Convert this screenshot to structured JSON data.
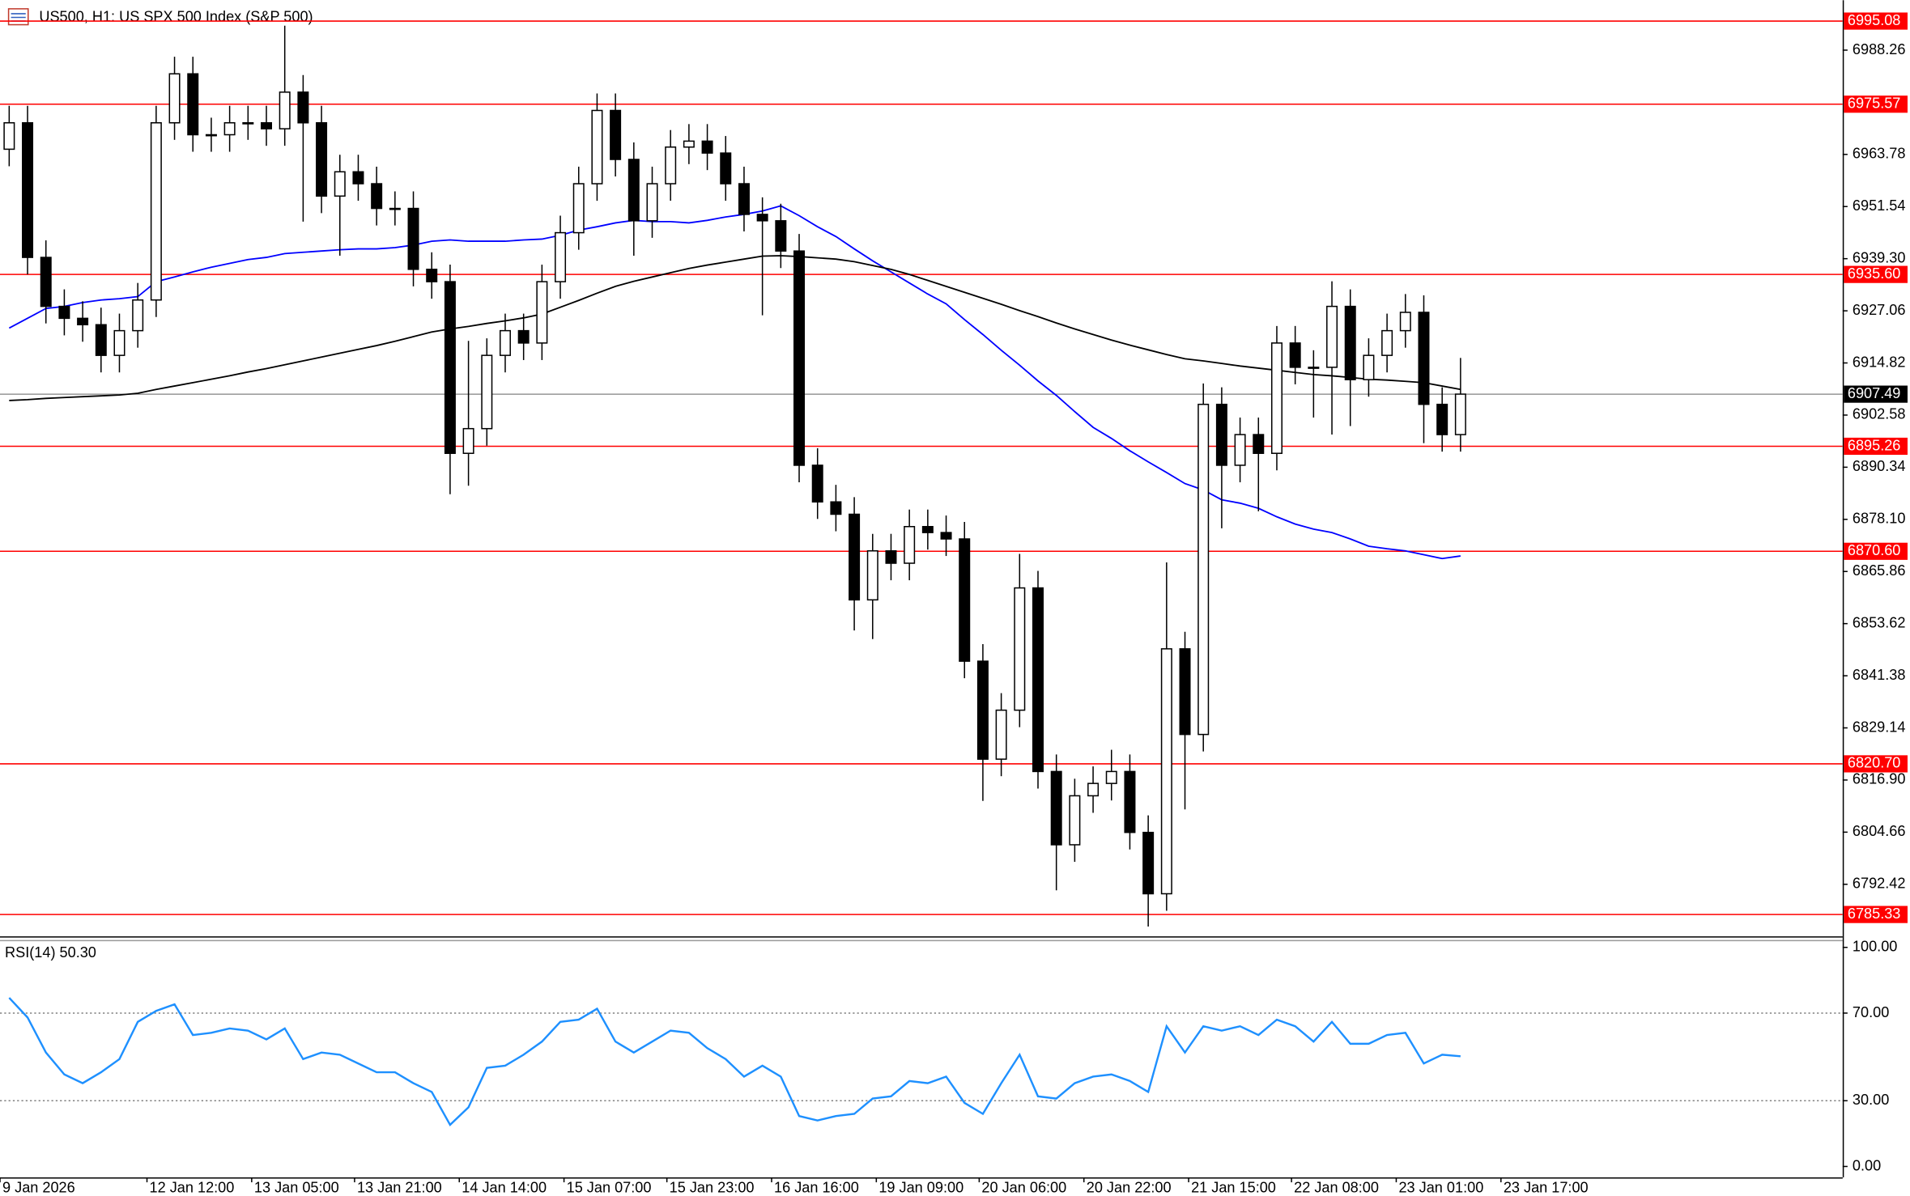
{
  "chart_data": [
    {
      "type": "candlestick",
      "title": "US500, H1:  US SPX 500 Index (S&P 500)",
      "open": [
        6965.0,
        6971.2,
        6939.6,
        6928.1,
        6925.3,
        6923.8,
        6916.6,
        6922.4,
        6929.6,
        6971.2,
        6982.7,
        6968.4,
        6968.4,
        6971.2,
        6971.2,
        6969.8,
        6978.4,
        6971.2,
        6954.0,
        6959.7,
        6956.9,
        6951.1,
        6951.1,
        6936.8,
        6933.9,
        6893.6,
        6899.4,
        6916.6,
        6922.4,
        6919.5,
        6933.9,
        6945.4,
        6956.9,
        6974.1,
        6962.6,
        6948.2,
        6956.9,
        6965.5,
        6966.9,
        6964.1,
        6956.9,
        6949.7,
        6948.2,
        6941.1,
        6890.8,
        6882.2,
        6879.3,
        6859.2,
        6870.7,
        6867.8,
        6876.4,
        6875.0,
        6873.5,
        6844.8,
        6821.8,
        6833.3,
        6862.0,
        6818.9,
        6801.7,
        6813.2,
        6816.1,
        6818.9,
        6804.6,
        6790.2,
        6847.7,
        6827.6,
        6905.1,
        6890.8,
        6898.0,
        6893.6,
        6919.5,
        6913.8,
        6913.8,
        6928.1,
        6910.9,
        6916.6,
        6922.4,
        6926.7,
        6905.1,
        6898.0
      ],
      "high": [
        6975.2,
        6975.2,
        6943.6,
        6932.1,
        6929.3,
        6927.8,
        6926.4,
        6933.6,
        6975.2,
        6986.7,
        6986.7,
        6972.4,
        6975.2,
        6975.2,
        6975.2,
        6994.0,
        6982.4,
        6975.2,
        6963.7,
        6963.7,
        6960.9,
        6955.1,
        6955.1,
        6940.8,
        6937.9,
        6920.0,
        6920.6,
        6926.4,
        6926.4,
        6937.9,
        6949.4,
        6960.9,
        6978.1,
        6978.1,
        6966.6,
        6960.9,
        6969.5,
        6970.9,
        6970.9,
        6968.1,
        6960.9,
        6953.7,
        6952.2,
        6945.1,
        6894.8,
        6886.2,
        6883.3,
        6874.7,
        6874.7,
        6880.4,
        6880.4,
        6879.0,
        6877.5,
        6848.8,
        6837.3,
        6870.0,
        6866.0,
        6822.9,
        6817.2,
        6820.1,
        6824.0,
        6822.9,
        6808.6,
        6868.0,
        6851.7,
        6910.0,
        6909.1,
        6902.0,
        6902.0,
        6923.5,
        6923.5,
        6917.8,
        6934.0,
        6932.1,
        6920.6,
        6926.4,
        6931.0,
        6930.7,
        6909.1,
        6916.0
      ],
      "low": [
        6961.0,
        6935.6,
        6924.1,
        6921.3,
        6919.8,
        6912.6,
        6912.6,
        6918.4,
        6925.6,
        6967.2,
        6964.4,
        6964.4,
        6964.4,
        6967.2,
        6965.8,
        6965.8,
        6948.0,
        6950.0,
        6940.0,
        6952.9,
        6947.1,
        6947.1,
        6932.8,
        6929.9,
        6884.0,
        6886.0,
        6895.4,
        6912.6,
        6915.5,
        6915.5,
        6929.9,
        6941.4,
        6952.9,
        6958.6,
        6940.0,
        6944.2,
        6952.9,
        6961.5,
        6960.1,
        6952.9,
        6945.7,
        6926.0,
        6937.1,
        6886.8,
        6878.2,
        6875.3,
        6852.0,
        6850.0,
        6863.8,
        6863.8,
        6871.0,
        6869.5,
        6840.8,
        6812.0,
        6817.8,
        6829.3,
        6814.9,
        6791.0,
        6797.7,
        6809.2,
        6812.1,
        6800.6,
        6782.5,
        6786.2,
        6810.0,
        6823.6,
        6876.0,
        6886.8,
        6880.0,
        6889.6,
        6909.8,
        6902.0,
        6898.0,
        6900.0,
        6906.9,
        6912.6,
        6918.4,
        6896.0,
        6894.0,
        6894.0
      ],
      "close": [
        6971.2,
        6939.6,
        6928.1,
        6925.3,
        6923.8,
        6916.6,
        6922.4,
        6929.6,
        6971.2,
        6982.7,
        6968.4,
        6968.4,
        6971.2,
        6971.2,
        6969.8,
        6978.4,
        6971.2,
        6954.0,
        6959.7,
        6956.9,
        6951.1,
        6951.1,
        6936.8,
        6933.9,
        6893.6,
        6899.4,
        6916.6,
        6922.4,
        6919.5,
        6933.9,
        6945.4,
        6956.9,
        6974.1,
        6962.6,
        6948.2,
        6956.9,
        6965.5,
        6966.9,
        6964.1,
        6956.9,
        6949.7,
        6948.2,
        6941.1,
        6890.8,
        6882.2,
        6879.3,
        6859.2,
        6870.7,
        6867.8,
        6876.4,
        6875.0,
        6873.5,
        6844.8,
        6821.8,
        6833.3,
        6862.0,
        6818.9,
        6801.7,
        6813.2,
        6816.1,
        6818.9,
        6804.6,
        6790.2,
        6847.7,
        6827.6,
        6905.1,
        6890.8,
        6898.0,
        6893.6,
        6919.5,
        6913.8,
        6913.8,
        6928.1,
        6910.9,
        6916.6,
        6922.4,
        6926.7,
        6905.1,
        6898.0,
        6907.5
      ],
      "lines": [
        {
          "color": "#0000ff",
          "values": [
            6923.0,
            6925.3,
            6927.6,
            6928.1,
            6929.0,
            6929.6,
            6929.9,
            6930.4,
            6933.9,
            6935.0,
            6936.2,
            6937.3,
            6938.2,
            6939.1,
            6939.6,
            6940.5,
            6940.8,
            6941.1,
            6941.4,
            6941.6,
            6941.6,
            6941.9,
            6942.5,
            6943.4,
            6943.7,
            6943.4,
            6943.4,
            6943.4,
            6943.7,
            6943.9,
            6944.8,
            6946.0,
            6946.8,
            6947.7,
            6948.3,
            6948.0,
            6948.0,
            6947.7,
            6948.3,
            6949.1,
            6949.7,
            6950.5,
            6951.7,
            6949.4,
            6946.8,
            6944.5,
            6941.6,
            6938.8,
            6936.2,
            6933.6,
            6931.0,
            6928.7,
            6925.0,
            6921.5,
            6917.8,
            6914.3,
            6910.6,
            6907.2,
            6903.4,
            6899.7,
            6897.1,
            6894.2,
            6891.6,
            6889.1,
            6886.5,
            6885.0,
            6882.7,
            6881.9,
            6880.7,
            6878.7,
            6877.0,
            6875.8,
            6875.0,
            6873.5,
            6871.8,
            6871.2,
            6870.7,
            6869.8,
            6868.9,
            6869.5
          ]
        },
        {
          "color": "#000000",
          "values": [
            6906.0,
            6906.2,
            6906.5,
            6906.7,
            6906.9,
            6907.1,
            6907.3,
            6907.7,
            6908.6,
            6909.4,
            6910.2,
            6911.0,
            6911.8,
            6912.7,
            6913.5,
            6914.4,
            6915.3,
            6916.2,
            6917.1,
            6918.0,
            6918.9,
            6919.9,
            6921.0,
            6922.1,
            6922.8,
            6923.4,
            6924.1,
            6924.7,
            6925.4,
            6926.3,
            6927.9,
            6929.5,
            6931.2,
            6932.8,
            6934.0,
            6935.0,
            6936.0,
            6937.0,
            6937.8,
            6938.5,
            6939.2,
            6939.9,
            6940.0,
            6939.8,
            6939.5,
            6939.2,
            6938.6,
            6937.7,
            6936.8,
            6935.6,
            6934.2,
            6932.8,
            6931.4,
            6930.0,
            6928.6,
            6927.1,
            6925.7,
            6924.2,
            6922.8,
            6921.5,
            6920.2,
            6919.0,
            6917.9,
            6916.8,
            6915.8,
            6915.3,
            6914.7,
            6914.1,
            6913.6,
            6913.1,
            6912.6,
            6912.1,
            6911.8,
            6911.4,
            6911.0,
            6910.8,
            6910.5,
            6910.2,
            6909.4,
            6908.6
          ]
        }
      ],
      "ylim": [
        6780.2,
        6999.4
      ],
      "yticks": [
        6988.26,
        6963.78,
        6951.54,
        {
          "value": 6939.3,
          "label": "6939.30"
        },
        6927.06,
        6914.82,
        6902.58,
        6890.34,
        {
          "value": 6878.1,
          "label": "6878.10"
        },
        6865.86,
        6853.62,
        6841.38,
        6829.14,
        {
          "value": 6816.9,
          "label": "6816.90"
        },
        6804.66,
        6792.42
      ],
      "hlines": {
        "color": "#ff0000",
        "levels": [
          6995.08,
          6975.57,
          {
            "value": 6935.6,
            "label": "6935.60"
          },
          6895.26,
          {
            "value": 6870.6,
            "label": "6870.60"
          },
          {
            "value": 6820.7,
            "label": "6820.70"
          },
          6785.33
        ]
      },
      "last_price": 6907.49,
      "xlim": [
        -0.5,
        99.8
      ],
      "xticks": [
        {
          "value": -0.5,
          "label": "9 Jan 2026"
        },
        {
          "value": 7.5,
          "label": "12 Jan 12:00"
        },
        {
          "value": 13.2,
          "label": "13 Jan 05:00"
        },
        {
          "value": 18.8,
          "label": "13 Jan 21:00"
        },
        {
          "value": 24.5,
          "label": "14 Jan 14:00"
        },
        {
          "value": 30.2,
          "label": "15 Jan 07:00"
        },
        {
          "value": 35.8,
          "label": "15 Jan 23:00"
        },
        {
          "value": 41.5,
          "label": "16 Jan 16:00"
        },
        {
          "value": 47.2,
          "label": "19 Jan 09:00"
        },
        {
          "value": 52.8,
          "label": "20 Jan 06:00"
        },
        {
          "value": 58.5,
          "label": "20 Jan 22:00"
        },
        {
          "value": 64.2,
          "label": "21 Jan 15:00"
        },
        {
          "value": 69.8,
          "label": "22 Jan 08:00"
        },
        {
          "value": 75.5,
          "label": "23 Jan 01:00"
        },
        {
          "value": 81.2,
          "label": "23 Jan 17:00"
        }
      ]
    },
    {
      "type": "line",
      "title": "RSI(14) 50.30",
      "color": "#1e90ff",
      "values": [
        77,
        68,
        52,
        42,
        38,
        43,
        49,
        66,
        71,
        74,
        60,
        61,
        63,
        62,
        58,
        63,
        49,
        52,
        51,
        47,
        43,
        43,
        38,
        34,
        19,
        27,
        45,
        46,
        51,
        57,
        66,
        67,
        72,
        57,
        52,
        57,
        62,
        61,
        54,
        49,
        41,
        46,
        41,
        23,
        21,
        23,
        24,
        31,
        32,
        39,
        38,
        41,
        29,
        24,
        38,
        51,
        32,
        31,
        38,
        41,
        42,
        39,
        34,
        64,
        52,
        64,
        62,
        64,
        60,
        67,
        64,
        57,
        66,
        56,
        56,
        60,
        61,
        47,
        51,
        50.3
      ],
      "ylim": [
        -5,
        102.8
      ],
      "yticks": [
        {
          "value": 100,
          "label": "100.00"
        },
        {
          "value": 70,
          "label": "70.00"
        },
        {
          "value": 30,
          "label": "30.00"
        },
        {
          "value": 0,
          "label": "0.00"
        }
      ],
      "level_lines": [
        70,
        30
      ]
    }
  ]
}
